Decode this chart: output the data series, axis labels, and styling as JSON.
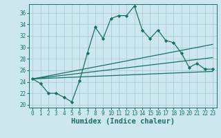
{
  "xlabel": "Humidex (Indice chaleur)",
  "bg_color": "#cce8ee",
  "grid_color": "#aacdd6",
  "line_color": "#1a6e6a",
  "xlim": [
    -0.5,
    23.5
  ],
  "ylim": [
    19.5,
    37.5
  ],
  "xticks": [
    0,
    1,
    2,
    3,
    4,
    5,
    6,
    7,
    8,
    9,
    10,
    11,
    12,
    13,
    14,
    15,
    16,
    17,
    18,
    19,
    20,
    21,
    22,
    23
  ],
  "yticks": [
    20,
    22,
    24,
    26,
    28,
    30,
    32,
    34,
    36
  ],
  "main_x": [
    0,
    1,
    2,
    3,
    4,
    5,
    6,
    7,
    8,
    9,
    10,
    11,
    12,
    13,
    14,
    15,
    16,
    17,
    18,
    19,
    20,
    21,
    22,
    23
  ],
  "main_y": [
    24.5,
    23.7,
    22.0,
    22.0,
    21.3,
    20.5,
    24.2,
    29.0,
    33.5,
    31.5,
    35.0,
    35.5,
    35.5,
    37.2,
    33.0,
    31.5,
    33.0,
    31.2,
    30.8,
    29.0,
    26.5,
    27.2,
    26.2,
    26.2
  ],
  "trend1_x0": 0,
  "trend1_y0": 24.5,
  "trend1_x1": 23,
  "trend1_y1": 25.8,
  "trend2_x0": 0,
  "trend2_y0": 24.5,
  "trend2_x1": 23,
  "trend2_y1": 28.2,
  "trend3_x0": 0,
  "trend3_y0": 24.5,
  "trend3_x1": 23,
  "trend3_y1": 30.5,
  "tick_fontsize": 5.5,
  "label_fontsize": 7.5
}
